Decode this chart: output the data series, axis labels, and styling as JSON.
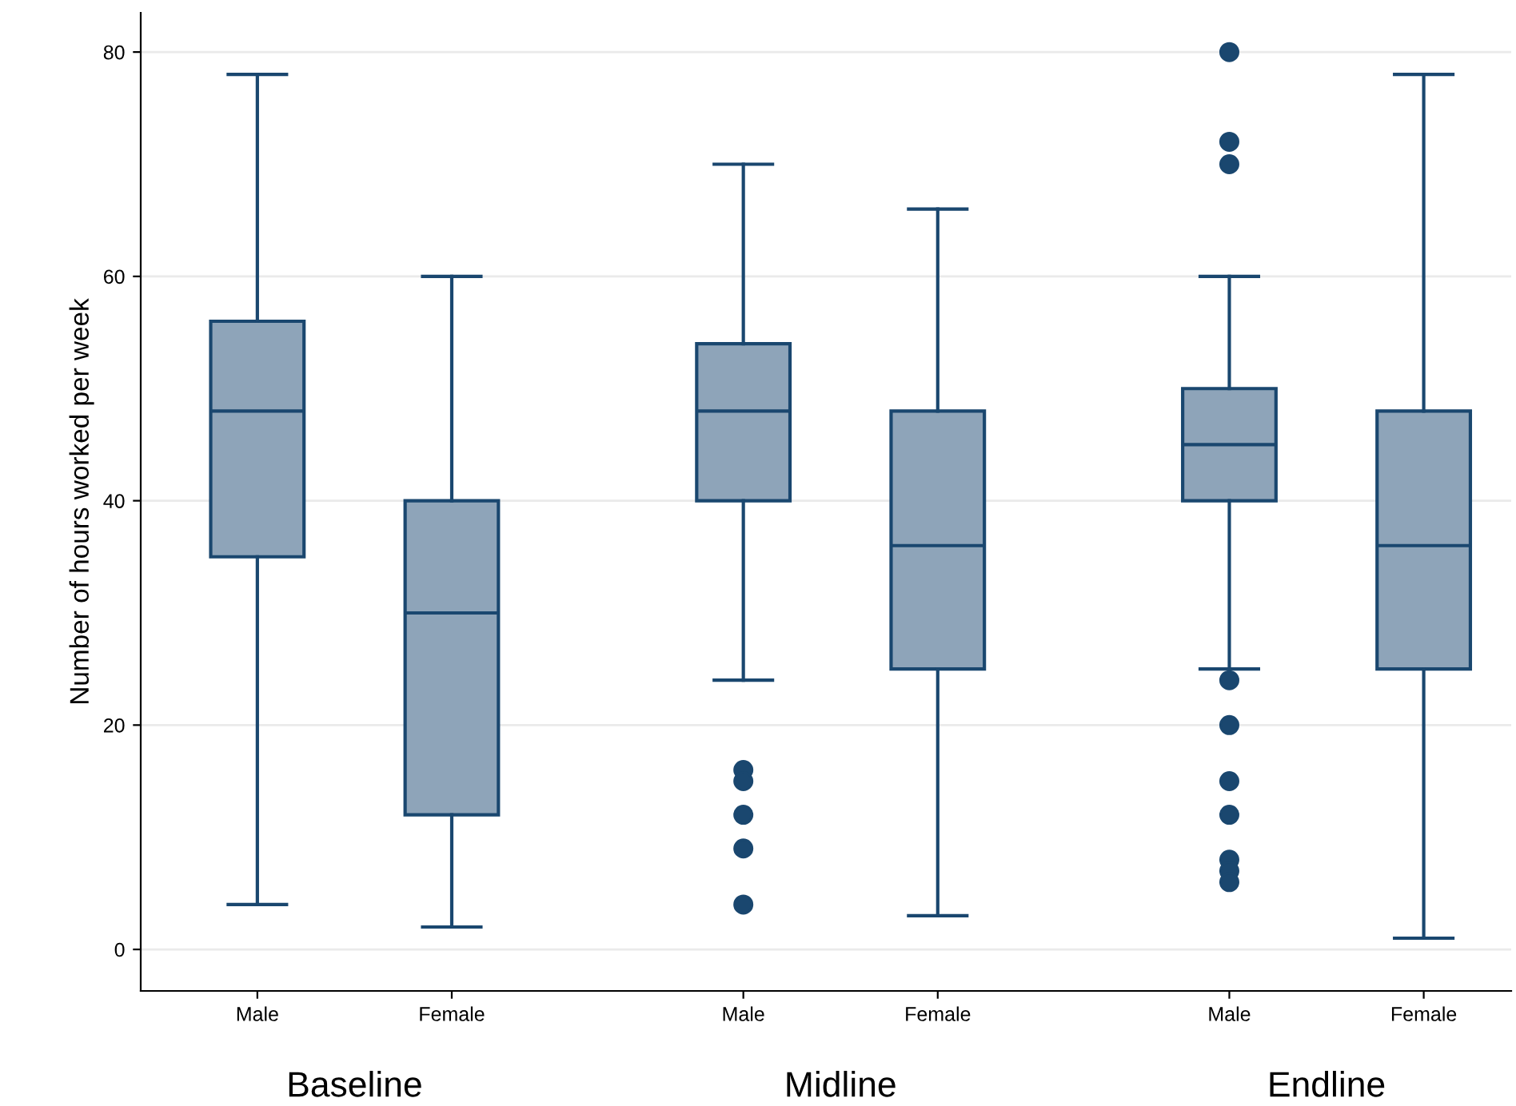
{
  "chart_data": {
    "type": "box",
    "ylabel": "Number of hours worked per week",
    "categories": [
      "Male",
      "Female",
      "Male",
      "Female",
      "Male",
      "Female"
    ],
    "annotations": [
      "Baseline",
      "Midline",
      "Endline"
    ],
    "ylim": [
      -3.7,
      83.5
    ],
    "yticks": [
      0,
      20,
      40,
      60,
      80
    ],
    "grid": "y",
    "color": "#8ea4b9",
    "boxes": [
      {
        "low": 4,
        "q1": 35,
        "median": 48,
        "q3": 56,
        "high": 78
      },
      {
        "low": 2,
        "q1": 12,
        "median": 30,
        "q3": 40,
        "high": 60
      },
      {
        "low": 24,
        "q1": 40,
        "median": 48,
        "q3": 54,
        "high": 70,
        "outliers": [
          16,
          15,
          12,
          9,
          4
        ]
      },
      {
        "low": 3,
        "q1": 25,
        "median": 36,
        "q3": 48,
        "high": 66
      },
      {
        "low": 25,
        "q1": 40,
        "median": 45,
        "q3": 50,
        "high": 60,
        "outliers": [
          80,
          72,
          70,
          24,
          20,
          15,
          12,
          8,
          7,
          6
        ]
      },
      {
        "low": 1,
        "q1": 25,
        "median": 36,
        "q3": 48,
        "high": 78
      }
    ]
  }
}
